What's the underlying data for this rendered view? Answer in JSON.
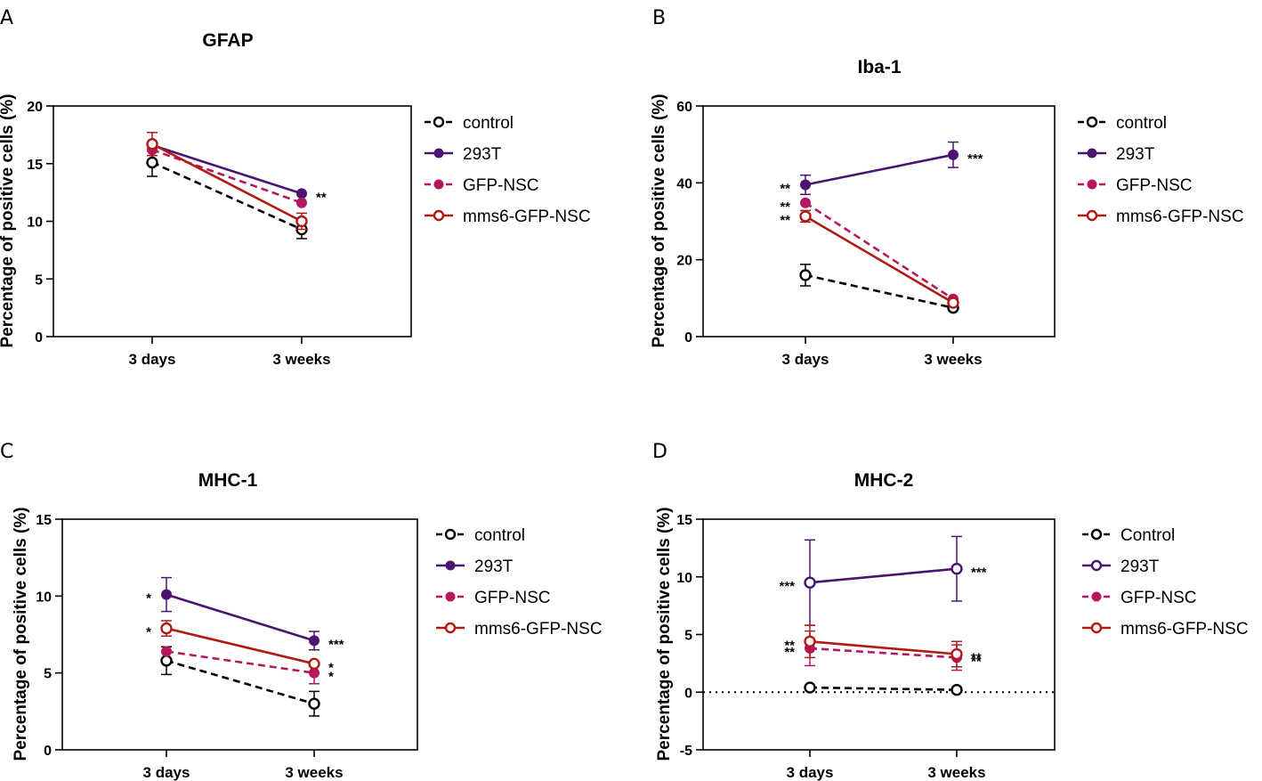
{
  "colors": {
    "control": "#000000",
    "293T": "#4b1470",
    "GFP-NSC": "#b5175e",
    "mms6-GFP-NSC": "#b01c14"
  },
  "chart_data": [
    {
      "panel": "A",
      "type": "line",
      "title": "GFAP",
      "xlabel": "",
      "ylabel": "Percentage of positive cells (%)",
      "categories": [
        "3 days",
        "3 weeks"
      ],
      "ylim": [
        0,
        20
      ],
      "yticks": [
        0,
        5,
        10,
        15,
        20
      ],
      "zero_line": false,
      "legend_labels": [
        "control",
        "293T",
        "GFP-NSC",
        "mms6-GFP-NSC"
      ],
      "series": [
        {
          "name": "control",
          "values": [
            15.1,
            9.3
          ],
          "errors": [
            1.2,
            0.8
          ],
          "style": "dashed",
          "marker": "open",
          "color_key": "control",
          "sig": [
            "",
            ""
          ]
        },
        {
          "name": "293T",
          "values": [
            16.6,
            12.4
          ],
          "errors": [
            0.0,
            0.0
          ],
          "style": "solid",
          "marker": "filled",
          "color_key": "293T",
          "sig": [
            "",
            "**"
          ]
        },
        {
          "name": "GFP-NSC",
          "values": [
            16.2,
            11.6
          ],
          "errors": [
            0.0,
            0.0
          ],
          "style": "dashed",
          "marker": "filled",
          "color_key": "GFP-NSC",
          "sig": [
            "",
            ""
          ]
        },
        {
          "name": "mms6-GFP-NSC",
          "values": [
            16.7,
            10.0
          ],
          "errors": [
            1.0,
            0.7
          ],
          "style": "solid",
          "marker": "open",
          "color_key": "mms6-GFP-NSC",
          "sig": [
            "",
            ""
          ]
        }
      ]
    },
    {
      "panel": "B",
      "type": "line",
      "title": "Iba-1",
      "xlabel": "",
      "ylabel": "Percentage of positive cells (%)",
      "categories": [
        "3 days",
        "3 weeks"
      ],
      "ylim": [
        0,
        60
      ],
      "yticks": [
        0,
        20,
        40,
        60
      ],
      "zero_line": false,
      "legend_labels": [
        "control",
        "293T",
        "GFP-NSC",
        "mms6-GFP-NSC"
      ],
      "series": [
        {
          "name": "control",
          "values": [
            16.0,
            7.5
          ],
          "errors": [
            2.8,
            0.0
          ],
          "style": "dashed",
          "marker": "open",
          "color_key": "control",
          "sig": [
            "",
            ""
          ]
        },
        {
          "name": "293T",
          "values": [
            39.5,
            47.3
          ],
          "errors": [
            2.5,
            3.3
          ],
          "style": "solid",
          "marker": "filled",
          "color_key": "293T",
          "sig": [
            "**",
            "***"
          ]
        },
        {
          "name": "GFP-NSC",
          "values": [
            34.8,
            9.8
          ],
          "errors": [
            0.0,
            0.0
          ],
          "style": "dashed",
          "marker": "filled",
          "color_key": "GFP-NSC",
          "sig": [
            "**",
            ""
          ]
        },
        {
          "name": "mms6-GFP-NSC",
          "values": [
            31.3,
            8.8
          ],
          "errors": [
            1.5,
            0.0
          ],
          "style": "solid",
          "marker": "open",
          "color_key": "mms6-GFP-NSC",
          "sig": [
            "**",
            ""
          ]
        }
      ]
    },
    {
      "panel": "C",
      "type": "line",
      "title": "MHC-1",
      "xlabel": "",
      "ylabel": "Percentage of positive cells (%)",
      "categories": [
        "3 days",
        "3 weeks"
      ],
      "ylim": [
        0,
        15
      ],
      "yticks": [
        0,
        5,
        10,
        15
      ],
      "zero_line": false,
      "legend_labels": [
        "control",
        "293T",
        "GFP-NSC",
        "mms6-GFP-NSC"
      ],
      "series": [
        {
          "name": "control",
          "values": [
            5.8,
            3.0
          ],
          "errors": [
            0.9,
            0.8
          ],
          "style": "dashed",
          "marker": "open",
          "color_key": "control",
          "sig": [
            "",
            ""
          ]
        },
        {
          "name": "293T",
          "values": [
            10.1,
            7.1
          ],
          "errors": [
            1.1,
            0.6
          ],
          "style": "solid",
          "marker": "filled",
          "color_key": "293T",
          "sig": [
            "*",
            "***"
          ]
        },
        {
          "name": "GFP-NSC",
          "values": [
            6.4,
            5.0
          ],
          "errors": [
            0.0,
            0.7
          ],
          "style": "dashed",
          "marker": "filled",
          "color_key": "GFP-NSC",
          "sig": [
            "",
            "*"
          ]
        },
        {
          "name": "mms6-GFP-NSC",
          "values": [
            7.9,
            5.6
          ],
          "errors": [
            0.5,
            0.0
          ],
          "style": "solid",
          "marker": "open",
          "color_key": "mms6-GFP-NSC",
          "sig": [
            "*",
            "*"
          ]
        }
      ]
    },
    {
      "panel": "D",
      "type": "line",
      "title": "MHC-2",
      "xlabel": "",
      "ylabel": "Percentage of positive cells (%)",
      "categories": [
        "3 days",
        "3 weeks"
      ],
      "ylim": [
        -5,
        15
      ],
      "yticks": [
        -5,
        0,
        5,
        10,
        15
      ],
      "zero_line": true,
      "legend_labels": [
        "Control",
        "293T",
        "GFP-NSC",
        "mms6-GFP-NSC"
      ],
      "series": [
        {
          "name": "Control",
          "values": [
            0.4,
            0.2
          ],
          "errors": [
            0.0,
            0.0
          ],
          "style": "dashed",
          "marker": "open",
          "color_key": "control",
          "sig": [
            "",
            ""
          ]
        },
        {
          "name": "293T",
          "values": [
            9.5,
            10.7
          ],
          "errors": [
            3.7,
            2.8
          ],
          "style": "solid",
          "marker": "open",
          "color_key": "293T",
          "sig": [
            "***",
            "***"
          ]
        },
        {
          "name": "GFP-NSC",
          "values": [
            3.8,
            3.0
          ],
          "errors": [
            1.5,
            1.1
          ],
          "style": "dashed",
          "marker": "filled",
          "color_key": "GFP-NSC",
          "sig": [
            "**",
            "**"
          ]
        },
        {
          "name": "mms6-GFP-NSC",
          "values": [
            4.4,
            3.3
          ],
          "errors": [
            1.4,
            1.1
          ],
          "style": "solid",
          "marker": "open",
          "color_key": "mms6-GFP-NSC",
          "sig": [
            "**",
            "**"
          ]
        }
      ]
    }
  ]
}
